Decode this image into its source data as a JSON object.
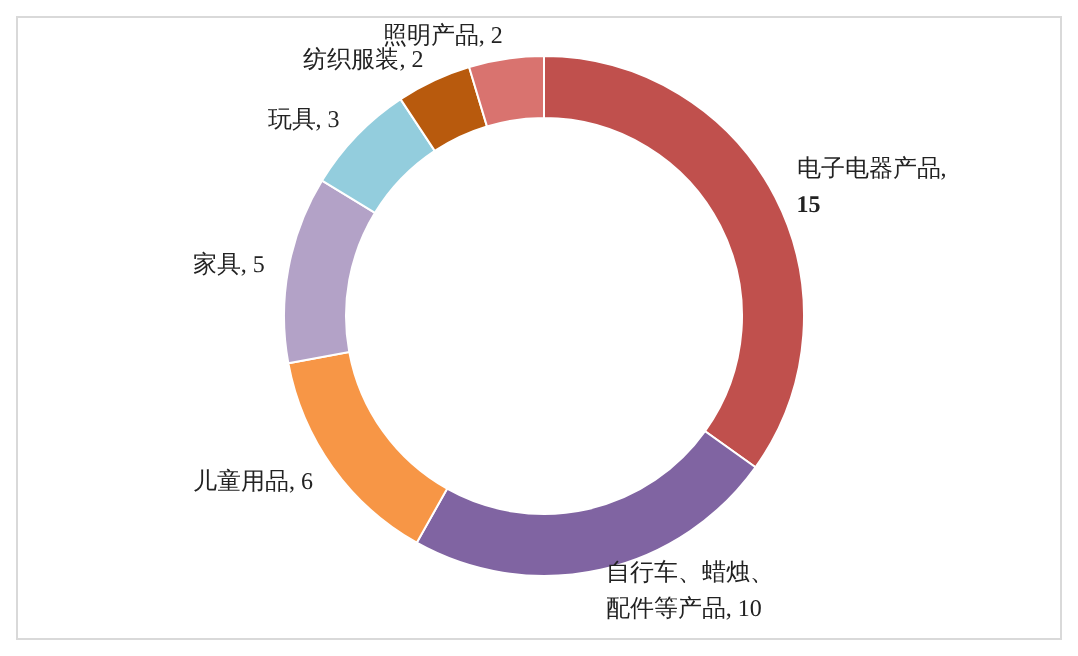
{
  "chart_data": {
    "type": "donut",
    "categories": [
      "电子电器产品",
      "自行车、蜡烛、配件等产品",
      "儿童用品",
      "家具",
      "玩具",
      "纺织服装",
      "照明产品"
    ],
    "values": [
      15,
      10,
      6,
      5,
      3,
      2,
      2
    ],
    "value_labels": [
      ", 15",
      ", 10",
      ", 6",
      ", 5",
      ", 3",
      ", 2",
      ", 2"
    ],
    "colors": [
      "#c0504d",
      "#8064a2",
      "#f79646",
      "#b3a2c7",
      "#93cddd",
      "#b85a0d",
      "#d9736f"
    ]
  }
}
